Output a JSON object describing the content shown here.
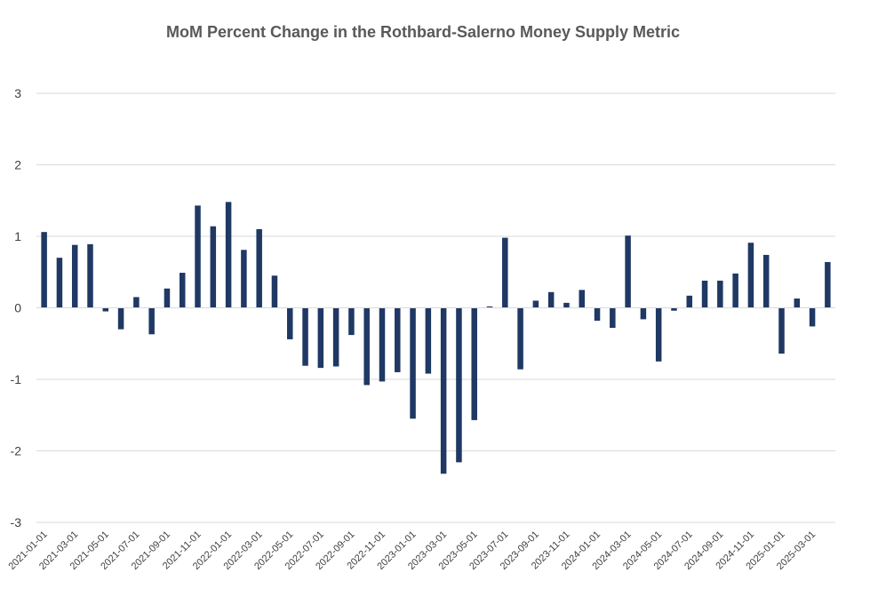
{
  "chart_data": {
    "type": "bar",
    "title": "MoM Percent Change in the Rothbard-Salerno Money Supply Metric",
    "xlabel": "",
    "ylabel": "",
    "ylim": [
      -3,
      3
    ],
    "yticks": [
      "3",
      "2",
      "1",
      "0",
      "-1",
      "-2",
      "-3"
    ],
    "ytick_values": [
      3,
      2,
      1,
      0,
      -1,
      -2,
      -3
    ],
    "grid": true,
    "bar_color": "#1f3864",
    "grid_color": "#d9d9d9",
    "categories": [
      "2021-01-01",
      "2021-02-01",
      "2021-03-01",
      "2021-04-01",
      "2021-05-01",
      "2021-06-01",
      "2021-07-01",
      "2021-08-01",
      "2021-09-01",
      "2021-10-01",
      "2021-11-01",
      "2021-12-01",
      "2022-01-01",
      "2022-02-01",
      "2022-03-01",
      "2022-04-01",
      "2022-05-01",
      "2022-06-01",
      "2022-07-01",
      "2022-08-01",
      "2022-09-01",
      "2022-10-01",
      "2022-11-01",
      "2022-12-01",
      "2023-01-01",
      "2023-02-01",
      "2023-03-01",
      "2023-04-01",
      "2023-05-01",
      "2023-06-01",
      "2023-07-01",
      "2023-08-01",
      "2023-09-01",
      "2023-10-01",
      "2023-11-01",
      "2023-12-01",
      "2024-01-01",
      "2024-02-01",
      "2024-03-01",
      "2024-04-01",
      "2024-05-01",
      "2024-06-01",
      "2024-07-01",
      "2024-08-01",
      "2024-09-01",
      "2024-10-01",
      "2024-11-01",
      "2024-12-01",
      "2025-01-01",
      "2025-02-01",
      "2025-03-01",
      "2025-04-01"
    ],
    "x_tick_labels": [
      "2021-01-01",
      "2021-03-01",
      "2021-05-01",
      "2021-07-01",
      "2021-09-01",
      "2021-11-01",
      "2022-01-01",
      "2022-03-01",
      "2022-05-01",
      "2022-07-01",
      "2022-09-01",
      "2022-11-01",
      "2023-01-01",
      "2023-03-01",
      "2023-05-01",
      "2023-07-01",
      "2023-09-01",
      "2023-11-01",
      "2024-01-01",
      "2024-03-01",
      "2024-05-01",
      "2024-07-01",
      "2024-09-01",
      "2024-11-01",
      "2025-01-01",
      "2025-03-01"
    ],
    "values": [
      1.06,
      0.7,
      0.88,
      0.89,
      -0.05,
      -0.3,
      0.15,
      -0.37,
      0.27,
      0.49,
      1.43,
      1.14,
      1.48,
      0.81,
      1.1,
      0.45,
      -0.44,
      -0.81,
      -0.84,
      -0.82,
      -0.38,
      -1.08,
      -1.03,
      -0.9,
      -1.55,
      -0.92,
      -2.32,
      -2.16,
      -1.57,
      0.02,
      0.98,
      -0.86,
      0.1,
      0.22,
      0.07,
      0.25,
      -0.18,
      -0.28,
      1.01,
      -0.16,
      -0.75,
      -0.04,
      0.17,
      0.38,
      0.38,
      0.48,
      0.91,
      0.74,
      -0.64,
      0.13,
      -0.26,
      0.64
    ]
  }
}
